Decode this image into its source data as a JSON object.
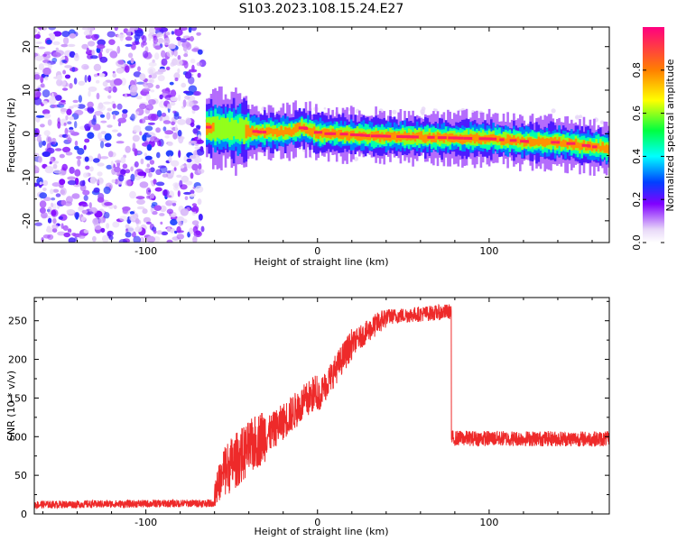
{
  "title": "S103.2023.108.15.24.E27",
  "chart_data": [
    {
      "type": "heatmap",
      "xlabel": "Height of straight line (km)",
      "ylabel": "Frequency (Hz)",
      "xlim": [
        -165,
        170
      ],
      "ylim": [
        -25,
        24.5
      ],
      "x_ticks": [
        -100,
        0,
        100
      ],
      "y_ticks": [
        -20,
        -10,
        0,
        10,
        20
      ],
      "colorbar": {
        "label": "Normalized spectral amplitude",
        "range": [
          0,
          1
        ],
        "ticks": [
          0.0,
          0.2,
          0.4,
          0.6,
          0.8
        ],
        "colors": [
          "#ffffff",
          "#e8d8f8",
          "#8000ff",
          "#0040ff",
          "#00ffff",
          "#00ff40",
          "#ffff00",
          "#ff8000",
          "#ff0080"
        ]
      },
      "noise_region_x": [
        -165,
        -70
      ],
      "ridge": [
        [
          -65,
          1.5,
          0.85
        ],
        [
          -55,
          1.0,
          0.6
        ],
        [
          -45,
          0.8,
          0.7
        ],
        [
          -35,
          0.4,
          0.85
        ],
        [
          -25,
          0.3,
          0.75
        ],
        [
          -15,
          0.6,
          0.8
        ],
        [
          -10,
          1.5,
          0.9
        ],
        [
          0,
          0.0,
          0.9
        ],
        [
          10,
          0.0,
          0.9
        ],
        [
          30,
          -0.5,
          0.85
        ],
        [
          60,
          -0.8,
          0.8
        ],
        [
          80,
          -1.0,
          0.8
        ],
        [
          100,
          -1.2,
          0.8
        ],
        [
          120,
          -1.8,
          0.9
        ],
        [
          140,
          -2.0,
          0.85
        ],
        [
          160,
          -3.0,
          0.85
        ],
        [
          170,
          -3.3,
          0.85
        ]
      ]
    },
    {
      "type": "line",
      "xlabel": "Height of straight line (km)",
      "ylabel": "SNR (10 * v/v)",
      "xlim": [
        -165,
        170
      ],
      "ylim": [
        0,
        280
      ],
      "x_ticks": [
        -100,
        0,
        100
      ],
      "y_ticks": [
        0,
        50,
        100,
        150,
        200,
        250
      ],
      "color": "#ee2a2a",
      "segments": [
        {
          "x": [
            -165,
            -60
          ],
          "y": [
            12,
            14
          ],
          "noise": 5
        },
        {
          "x": [
            -60,
            -55
          ],
          "y": [
            20,
            40
          ],
          "noise": 30
        },
        {
          "x": [
            -55,
            -30
          ],
          "y": [
            40,
            90
          ],
          "noise": 45
        },
        {
          "x": [
            -30,
            0
          ],
          "y": [
            90,
            150
          ],
          "noise": 30
        },
        {
          "x": [
            0,
            20
          ],
          "y": [
            150,
            220
          ],
          "noise": 20
        },
        {
          "x": [
            20,
            40
          ],
          "y": [
            220,
            255
          ],
          "noise": 15
        },
        {
          "x": [
            40,
            78
          ],
          "y": [
            255,
            262
          ],
          "noise": 10
        },
        {
          "x": [
            78,
            170
          ],
          "y": [
            98,
            97
          ],
          "noise": 10
        }
      ]
    }
  ]
}
